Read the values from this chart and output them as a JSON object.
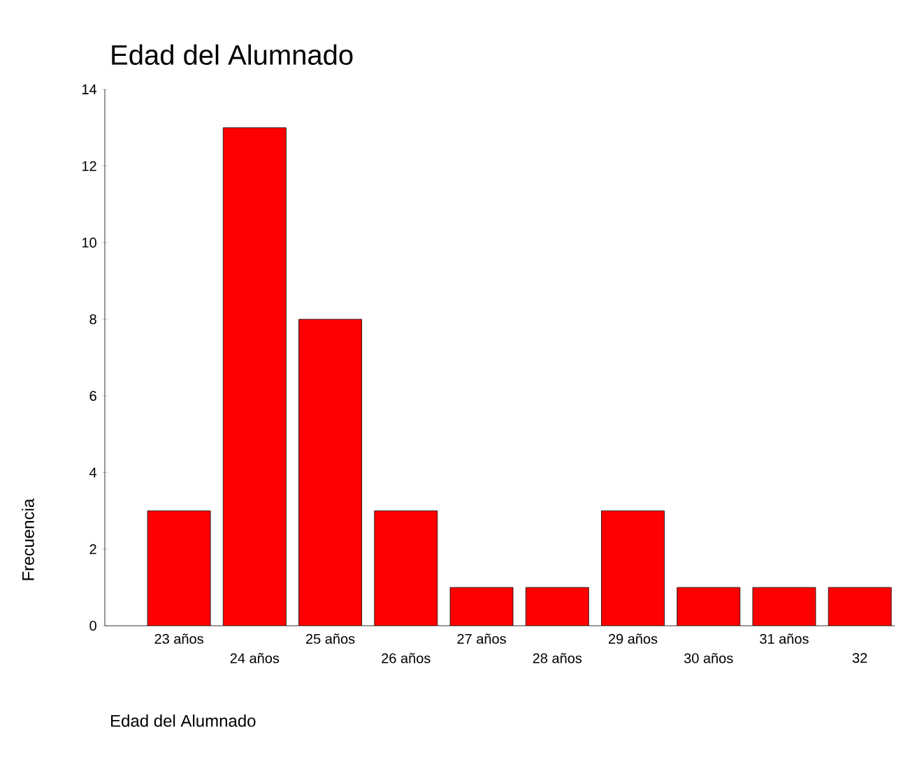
{
  "chart_data": {
    "type": "bar",
    "title": "Edad del Alumnado",
    "xlabel": "Edad del Alumnado",
    "ylabel": "Frecuencia",
    "categories": [
      "23 años",
      "24 años",
      "25 años",
      "26 años",
      "27 años",
      "28 años",
      "29 años",
      "30 años",
      "31 años",
      "32"
    ],
    "values": [
      3,
      13,
      8,
      3,
      1,
      1,
      3,
      1,
      1,
      1
    ],
    "color": "#ff0000",
    "ylim": [
      0,
      14
    ],
    "yticks": [
      0,
      2,
      4,
      6,
      8,
      10,
      12,
      14
    ]
  }
}
